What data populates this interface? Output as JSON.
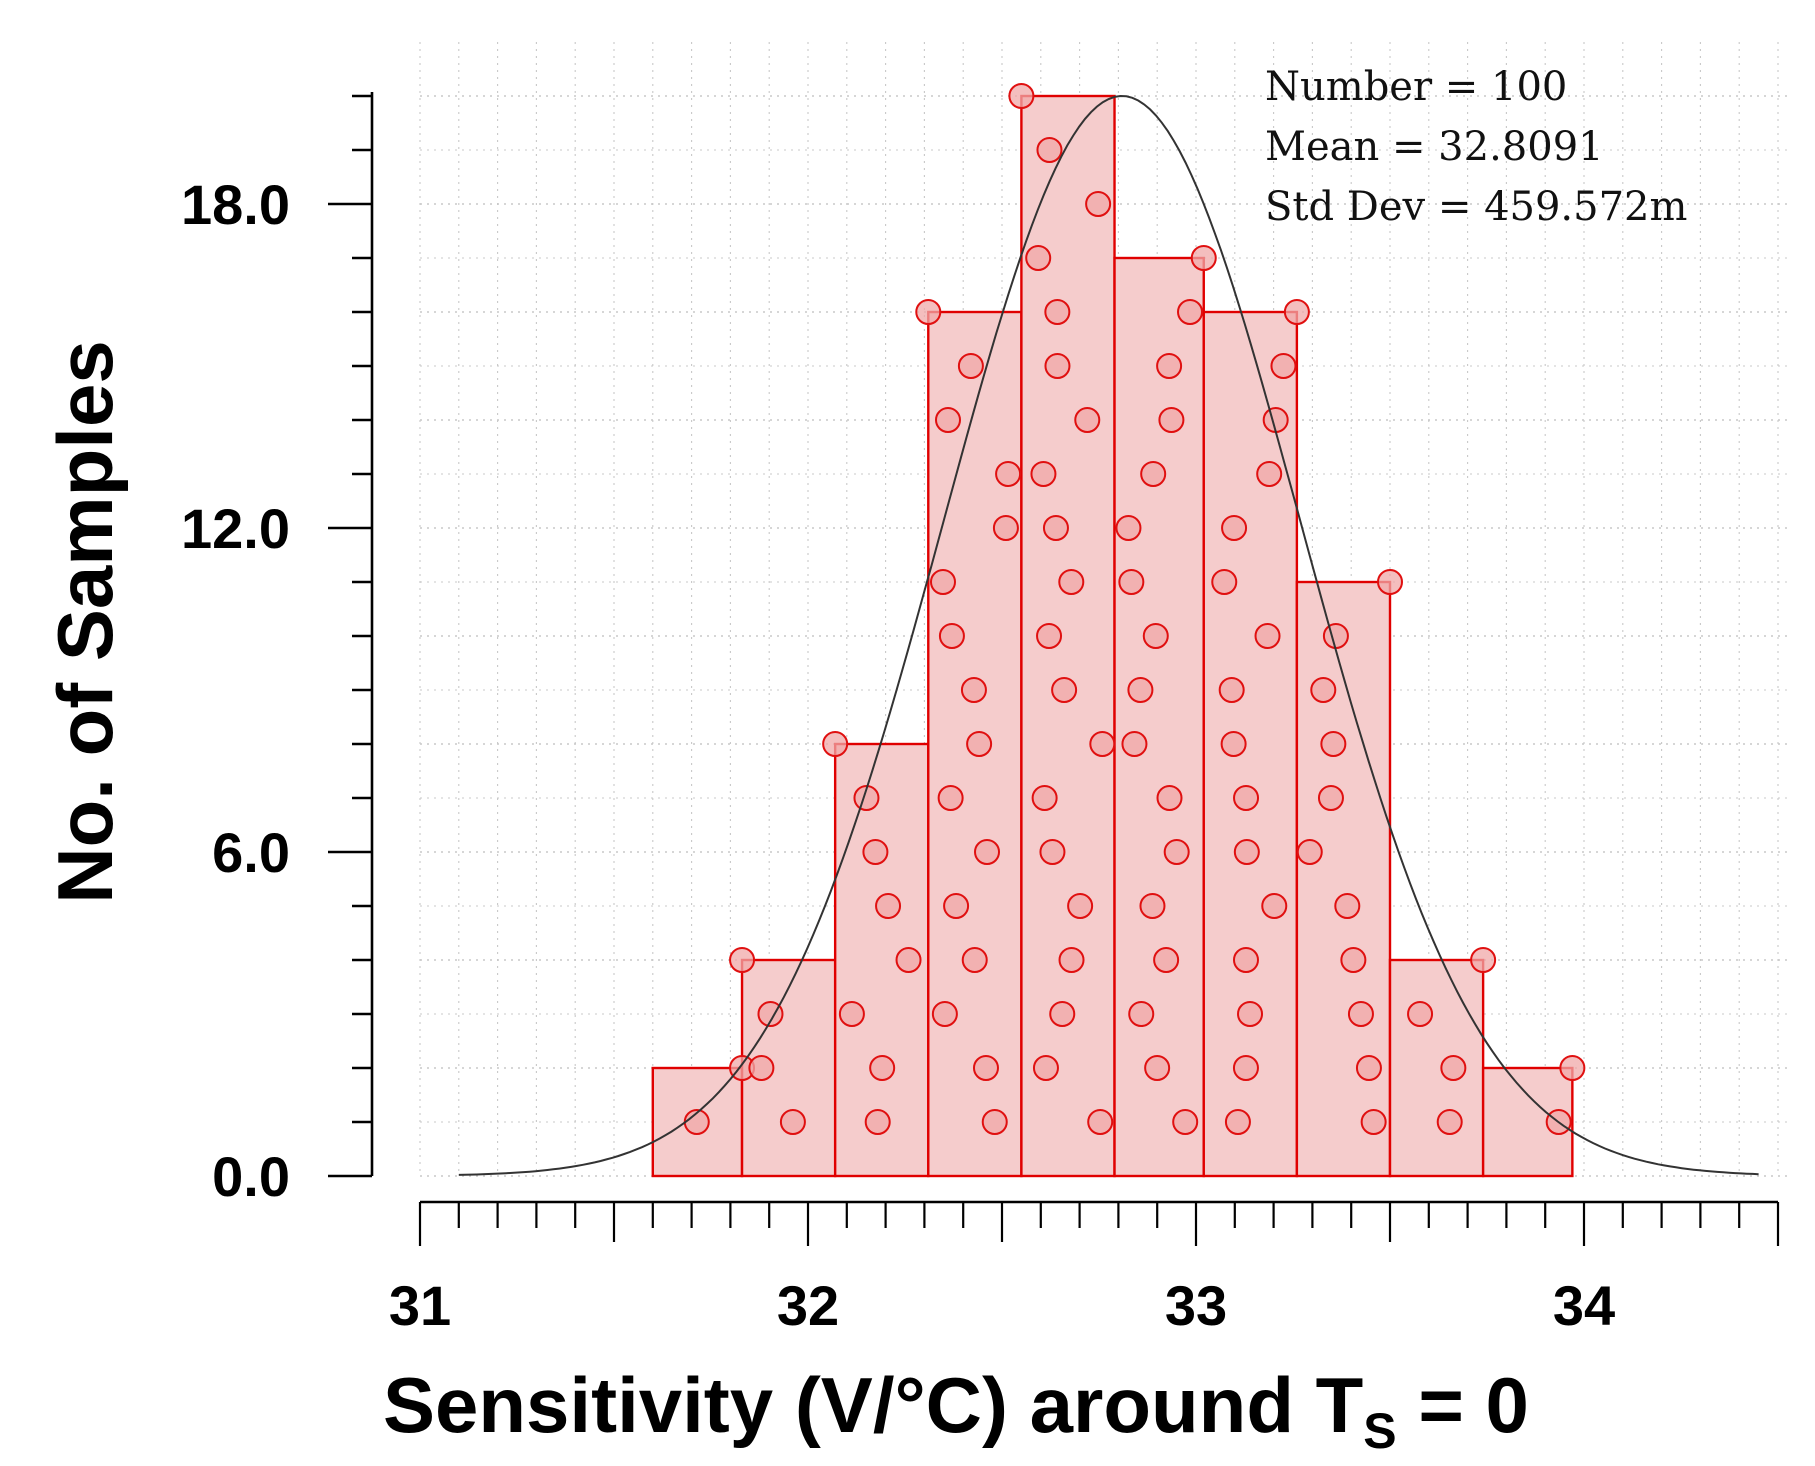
{
  "chart_data": {
    "type": "histogram",
    "title": "",
    "xlabel": "Sensitivity (V/°C) around T",
    "xlabel_subscript": "S",
    "xlabel_suffix": " = 0",
    "ylabel": "No. of Samples",
    "xlim": [
      31,
      34.5
    ],
    "ylim": [
      0,
      20
    ],
    "x_ticks": [
      31,
      32,
      33,
      34
    ],
    "x_tick_labels": [
      "31",
      "32",
      "33",
      "34"
    ],
    "y_ticks": [
      0,
      6,
      12,
      18
    ],
    "y_tick_labels": [
      "0.0",
      "6.0",
      "12.0",
      "18.0"
    ],
    "grid": true,
    "bins": [
      {
        "start": 31.6,
        "end": 31.83,
        "count": 2
      },
      {
        "start": 31.83,
        "end": 32.07,
        "count": 4
      },
      {
        "start": 32.07,
        "end": 32.31,
        "count": 8
      },
      {
        "start": 32.31,
        "end": 32.55,
        "count": 16
      },
      {
        "start": 32.55,
        "end": 32.79,
        "count": 20
      },
      {
        "start": 32.79,
        "end": 33.02,
        "count": 17
      },
      {
        "start": 33.02,
        "end": 33.26,
        "count": 16
      },
      {
        "start": 33.26,
        "end": 33.5,
        "count": 11
      },
      {
        "start": 33.5,
        "end": 33.74,
        "count": 4
      },
      {
        "start": 33.74,
        "end": 33.97,
        "count": 2
      }
    ],
    "fit_curve": {
      "type": "normal",
      "mean": 32.8091,
      "std": 0.459572,
      "peak": 20,
      "x_range": [
        31.1,
        34.45
      ]
    },
    "stats": {
      "number_label": "Number = 100",
      "mean_label": "Mean = 32.8091",
      "std_label": "Std Dev = 459.572m"
    },
    "colors": {
      "bar_fill": "#f5cccc",
      "bar_stroke": "#e00000",
      "marker_fill": "#f0a8a8",
      "marker_stroke": "#e01010",
      "curve": "#333333",
      "grid": "#c8c8c8",
      "axis": "#000000"
    }
  }
}
